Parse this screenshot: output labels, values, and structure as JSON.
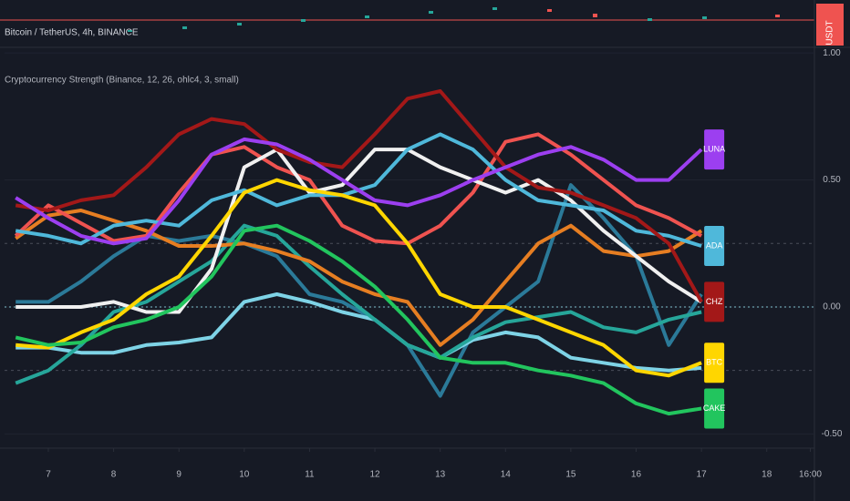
{
  "header": {
    "symbol": "Bitcoin / TetherUS, 4h, BINANCE",
    "quote": "USDT"
  },
  "chart_data": {
    "type": "line",
    "title": "Cryptocurrency Strength (Binance, 12, 26, ohlc4, 3, small)",
    "x": [
      6.5,
      7,
      7.5,
      8,
      8.5,
      9,
      9.5,
      10,
      10.5,
      11,
      11.5,
      12,
      12.5,
      13,
      13.5,
      14,
      14.5,
      15,
      15.5,
      16,
      16.5,
      17
    ],
    "xlim": [
      6.33,
      18.73
    ],
    "xticks": [
      7,
      8,
      9,
      10,
      11,
      12,
      13,
      14,
      15,
      16,
      17,
      18,
      {
        "value": 18.667,
        "label": "16:00"
      }
    ],
    "ylim": [
      -0.556,
      1.022
    ],
    "yticks": [
      {
        "value": 1,
        "label": "1.00"
      },
      {
        "value": 0.5,
        "label": "0.50"
      },
      {
        "value": 0,
        "label": "0.00"
      },
      {
        "value": -0.5,
        "label": "-0.50"
      }
    ],
    "levels": [
      0.25,
      0,
      -0.25
    ],
    "series": [
      {
        "color": "#2b7a99",
        "values": [
          0.02,
          0.02,
          0.1,
          0.2,
          0.28,
          0.26,
          0.28,
          0.25,
          0.2,
          0.05,
          0.02,
          -0.05,
          -0.15,
          -0.35,
          -0.1,
          0.0,
          0.1,
          0.48,
          0.35,
          0.2,
          -0.15,
          0.05
        ]
      },
      {
        "color": "#7ed3e6",
        "values": [
          -0.16,
          -0.16,
          -0.18,
          -0.18,
          -0.15,
          -0.14,
          -0.12,
          0.02,
          0.05,
          0.02,
          -0.02,
          -0.05,
          -0.15,
          -0.2,
          -0.13,
          -0.1,
          -0.12,
          -0.2,
          -0.22,
          -0.24,
          -0.25,
          -0.24
        ]
      },
      {
        "color": "#26a69a",
        "values": [
          -0.3,
          -0.25,
          -0.15,
          -0.02,
          0.02,
          0.1,
          0.18,
          0.32,
          0.28,
          0.16,
          0.05,
          -0.05,
          -0.15,
          -0.2,
          -0.12,
          -0.06,
          -0.04,
          -0.02,
          -0.08,
          -0.1,
          -0.05,
          -0.02
        ]
      },
      {
        "color": "#e67e22",
        "values": [
          0.27,
          0.36,
          0.38,
          0.34,
          0.3,
          0.24,
          0.24,
          0.25,
          0.22,
          0.18,
          0.1,
          0.05,
          0.02,
          -0.15,
          -0.05,
          0.1,
          0.25,
          0.32,
          0.22,
          0.2,
          0.22,
          0.3
        ]
      },
      {
        "color": "#ef5350",
        "values": [
          0.28,
          0.4,
          0.33,
          0.26,
          0.28,
          0.45,
          0.6,
          0.63,
          0.55,
          0.5,
          0.32,
          0.26,
          0.25,
          0.32,
          0.45,
          0.65,
          0.68,
          0.6,
          0.5,
          0.4,
          0.35,
          0.28
        ]
      },
      {
        "color": "#f0f0f0",
        "values": [
          0.0,
          0.0,
          0.0,
          0.02,
          -0.02,
          -0.02,
          0.15,
          0.55,
          0.62,
          0.45,
          0.48,
          0.62,
          0.62,
          0.55,
          0.5,
          0.45,
          0.5,
          0.42,
          0.3,
          0.2,
          0.1,
          0.02
        ]
      },
      {
        "name": "ADA",
        "color": "#4fb8da",
        "values": [
          0.3,
          0.28,
          0.25,
          0.32,
          0.34,
          0.32,
          0.42,
          0.46,
          0.4,
          0.44,
          0.44,
          0.48,
          0.62,
          0.68,
          0.62,
          0.5,
          0.42,
          0.4,
          0.38,
          0.3,
          0.28,
          0.24
        ]
      },
      {
        "name": "CHZ",
        "color": "#a31818",
        "values": [
          0.4,
          0.38,
          0.42,
          0.44,
          0.55,
          0.68,
          0.74,
          0.72,
          0.62,
          0.57,
          0.55,
          0.68,
          0.82,
          0.85,
          0.7,
          0.55,
          0.47,
          0.45,
          0.4,
          0.35,
          0.25,
          0.02
        ]
      },
      {
        "name": "BTC",
        "color": "#ffd600",
        "values": [
          -0.15,
          -0.16,
          -0.1,
          -0.05,
          0.05,
          0.12,
          0.28,
          0.45,
          0.5,
          0.46,
          0.44,
          0.4,
          0.25,
          0.05,
          0.0,
          0.0,
          -0.05,
          -0.1,
          -0.15,
          -0.25,
          -0.27,
          -0.22
        ]
      },
      {
        "name": "CAKE",
        "color": "#22c55e",
        "values": [
          -0.12,
          -0.15,
          -0.14,
          -0.08,
          -0.05,
          0.0,
          0.12,
          0.3,
          0.32,
          0.26,
          0.18,
          0.08,
          -0.05,
          -0.2,
          -0.22,
          -0.22,
          -0.25,
          -0.27,
          -0.3,
          -0.38,
          -0.42,
          -0.4
        ]
      },
      {
        "name": "LUNA",
        "color": "#9c3ff0",
        "values": [
          0.43,
          0.35,
          0.28,
          0.25,
          0.27,
          0.42,
          0.6,
          0.66,
          0.64,
          0.58,
          0.5,
          0.42,
          0.4,
          0.44,
          0.5,
          0.55,
          0.6,
          0.63,
          0.58,
          0.5,
          0.5,
          0.62
        ]
      }
    ]
  }
}
